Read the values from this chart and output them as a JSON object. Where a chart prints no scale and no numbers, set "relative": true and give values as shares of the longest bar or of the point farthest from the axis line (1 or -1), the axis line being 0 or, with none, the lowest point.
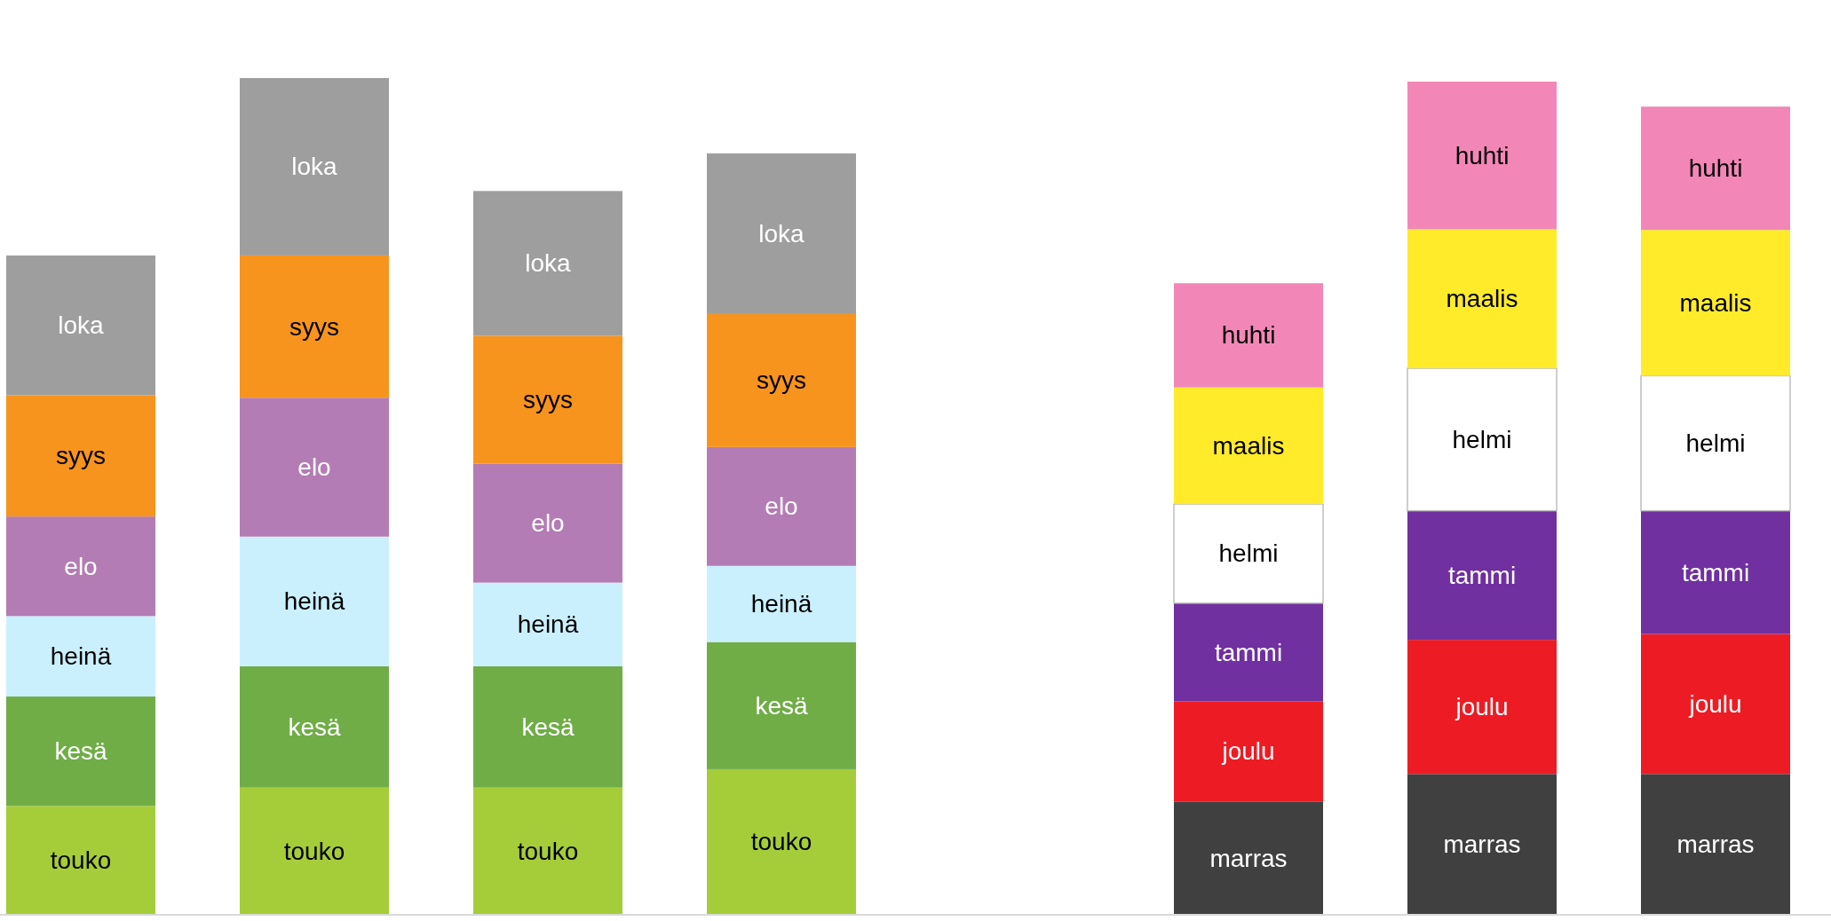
{
  "chart_data": [
    {
      "type": "bar",
      "stacked": true,
      "relative": true,
      "data_labels": "names",
      "categories": [
        null,
        null,
        null,
        null
      ],
      "series": [
        {
          "name": "touko",
          "color": "#a5cd39",
          "values": [
            0.13,
            0.152,
            0.152,
            0.174
          ]
        },
        {
          "name": "kesä",
          "color": "#70ad47",
          "values": [
            0.131,
            0.145,
            0.145,
            0.152
          ]
        },
        {
          "name": "heinä",
          "color": "#caf0fd",
          "values": [
            0.096,
            0.155,
            0.1,
            0.091
          ]
        },
        {
          "name": "elo",
          "color": "#b47cb4",
          "values": [
            0.119,
            0.166,
            0.142,
            0.142
          ]
        },
        {
          "name": "syys",
          "color": "#f7941d",
          "values": [
            0.145,
            0.17,
            0.153,
            0.159
          ]
        },
        {
          "name": "loka",
          "color": "#9e9e9e",
          "values": [
            0.167,
            0.212,
            0.173,
            0.192
          ]
        }
      ]
    },
    {
      "type": "bar",
      "stacked": true,
      "relative": true,
      "data_labels": "names",
      "categories": [
        null,
        null,
        null
      ],
      "series": [
        {
          "name": "marras",
          "color": "#404040",
          "values": [
            0.136,
            0.169,
            0.169
          ]
        },
        {
          "name": "joulu",
          "color": "#ed1c24",
          "values": [
            0.12,
            0.161,
            0.168
          ]
        },
        {
          "name": "tammi",
          "color": "#7030a0",
          "values": [
            0.118,
            0.155,
            0.148
          ]
        },
        {
          "name": "helmi",
          "color": "#ffffff",
          "values": [
            0.119,
            0.171,
            0.162
          ]
        },
        {
          "name": "maalis",
          "color": "#ffeb2a",
          "values": [
            0.14,
            0.167,
            0.175
          ]
        },
        {
          "name": "huhti",
          "color": "#f287b7",
          "values": [
            0.125,
            0.177,
            0.148
          ]
        }
      ]
    }
  ]
}
